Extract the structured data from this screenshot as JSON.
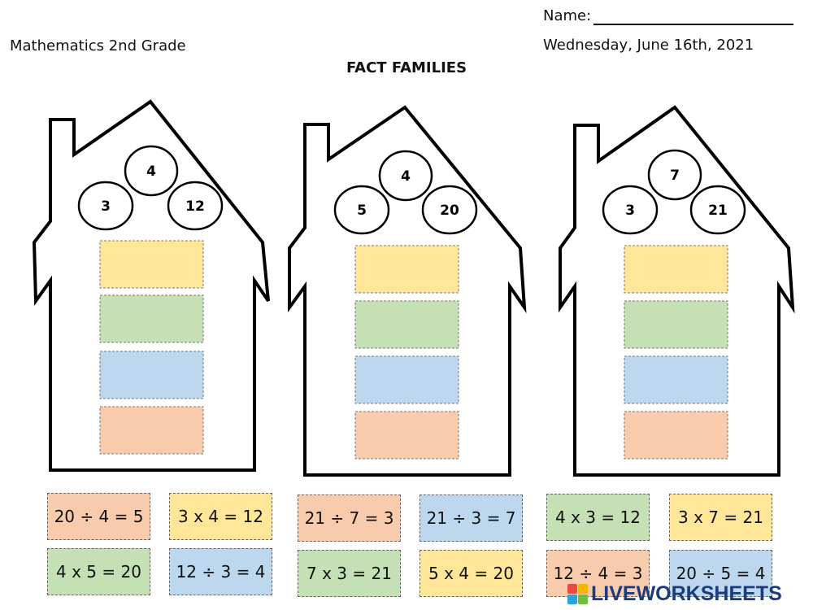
{
  "header": {
    "subject": "Mathematics 2nd Grade",
    "name_label": "Name:",
    "date": "Wednesday, June 16th, 2021",
    "title": "FACT FAMILIES"
  },
  "houses": [
    {
      "numbers": [
        "4",
        "3",
        "12"
      ]
    },
    {
      "numbers": [
        "4",
        "5",
        "20"
      ]
    },
    {
      "numbers": [
        "7",
        "3",
        "21"
      ]
    }
  ],
  "slot_colors": [
    "#ffe699",
    "#c5e0b4",
    "#bdd7ee",
    "#f8cbad"
  ],
  "cards_row1": [
    {
      "text": "20 ÷ 4 = 5",
      "color": "orange"
    },
    {
      "text": "3 x 4 = 12",
      "color": "yellow"
    },
    {
      "text": "21 ÷ 7 = 3",
      "color": "orange"
    },
    {
      "text": "21 ÷ 3 = 7",
      "color": "blue"
    },
    {
      "text": "4 x 3 = 12",
      "color": "green"
    },
    {
      "text": "3 x 7 = 21",
      "color": "yellow"
    }
  ],
  "cards_row2": [
    {
      "text": "4 x 5 = 20",
      "color": "green"
    },
    {
      "text": "12 ÷ 3 = 4",
      "color": "blue"
    },
    {
      "text": "7 x 3 = 21",
      "color": "green"
    },
    {
      "text": "5 x 4 = 20",
      "color": "yellow"
    },
    {
      "text": "12 ÷ 4 = 3",
      "color": "orange"
    },
    {
      "text": "20 ÷ 5 = 4",
      "color": "blue"
    }
  ],
  "logo": {
    "text": "LIVEWORKSHEETS"
  }
}
